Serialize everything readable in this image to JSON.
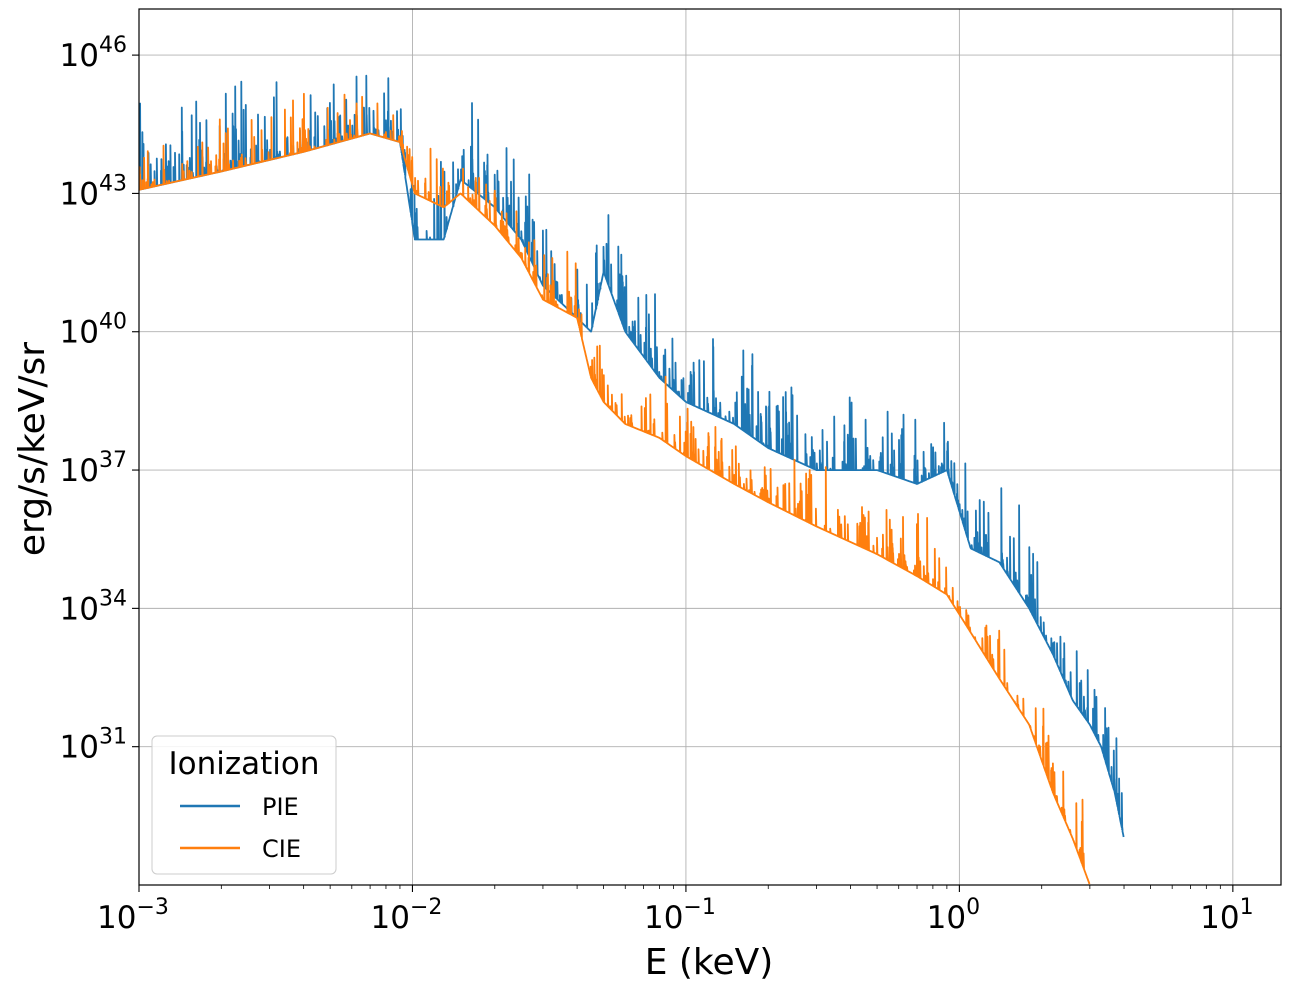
{
  "chart_data": {
    "type": "line",
    "xlabel": "E (keV)",
    "ylabel": "erg/s/keV/sr",
    "x_scale": "log",
    "y_scale": "log",
    "xlim": [
      0.001,
      15
    ],
    "ylim": [
      1e+28,
      1e+47
    ],
    "grid": true,
    "x_ticks": [
      {
        "base": "10",
        "exp": "−3"
      },
      {
        "base": "10",
        "exp": "−2"
      },
      {
        "base": "10",
        "exp": "−1"
      },
      {
        "base": "10",
        "exp": "0"
      },
      {
        "base": "10",
        "exp": "1"
      }
    ],
    "y_ticks": [
      {
        "base": "10",
        "exp": "46"
      },
      {
        "base": "10",
        "exp": "43"
      },
      {
        "base": "10",
        "exp": "40"
      },
      {
        "base": "10",
        "exp": "37"
      },
      {
        "base": "10",
        "exp": "34"
      },
      {
        "base": "10",
        "exp": "31"
      }
    ],
    "legend": {
      "title": "Ionization",
      "placement": "lower-left"
    },
    "series": [
      {
        "name": "PIE",
        "color": "#1f77b4",
        "x": [
          0.001,
          0.002,
          0.004,
          0.007,
          0.009,
          0.0102,
          0.013,
          0.015,
          0.02,
          0.025,
          0.03,
          0.04,
          0.045,
          0.05,
          0.06,
          0.08,
          0.1,
          0.15,
          0.2,
          0.3,
          0.5,
          0.7,
          0.9,
          1.1,
          1.4,
          1.8,
          2.2,
          2.6,
          3.0,
          3.3,
          3.7,
          4.0
        ],
        "y": [
          1.2e+43,
          3e+43,
          8e+43,
          2e+44,
          1.3e+44,
          1e+42,
          1e+42,
          2e+43,
          5e+42,
          1e+42,
          1e+41,
          2e+40,
          1e+40,
          2e+41,
          1e+40,
          1e+39,
          3e+38,
          1e+38,
          3e+37,
          1e+37,
          1e+37,
          5e+36,
          1e+37,
          2e+35,
          1e+35,
          1e+34,
          1e+33,
          1e+32,
          3e+31,
          1e+31,
          1e+30,
          1e+29
        ]
      },
      {
        "name": "CIE",
        "color": "#ff7f0e",
        "x": [
          0.001,
          0.002,
          0.004,
          0.007,
          0.009,
          0.0102,
          0.013,
          0.015,
          0.02,
          0.025,
          0.03,
          0.04,
          0.045,
          0.05,
          0.06,
          0.08,
          0.1,
          0.15,
          0.2,
          0.3,
          0.5,
          0.7,
          0.9,
          1.1,
          1.4,
          1.8,
          2.2,
          2.6,
          3.0
        ],
        "y": [
          1.2e+43,
          3e+43,
          8e+43,
          2e+44,
          1.3e+44,
          1e+43,
          5e+42,
          1e+43,
          2e+42,
          4e+41,
          5e+40,
          2e+40,
          1e+39,
          3e+38,
          1e+38,
          5e+37,
          2e+37,
          5e+36,
          2e+36,
          6e+35,
          1.5e+35,
          5e+34,
          2e+34,
          3e+33,
          3e+32,
          3e+31,
          1e+30,
          1e+29,
          1e+28
        ]
      }
    ]
  }
}
